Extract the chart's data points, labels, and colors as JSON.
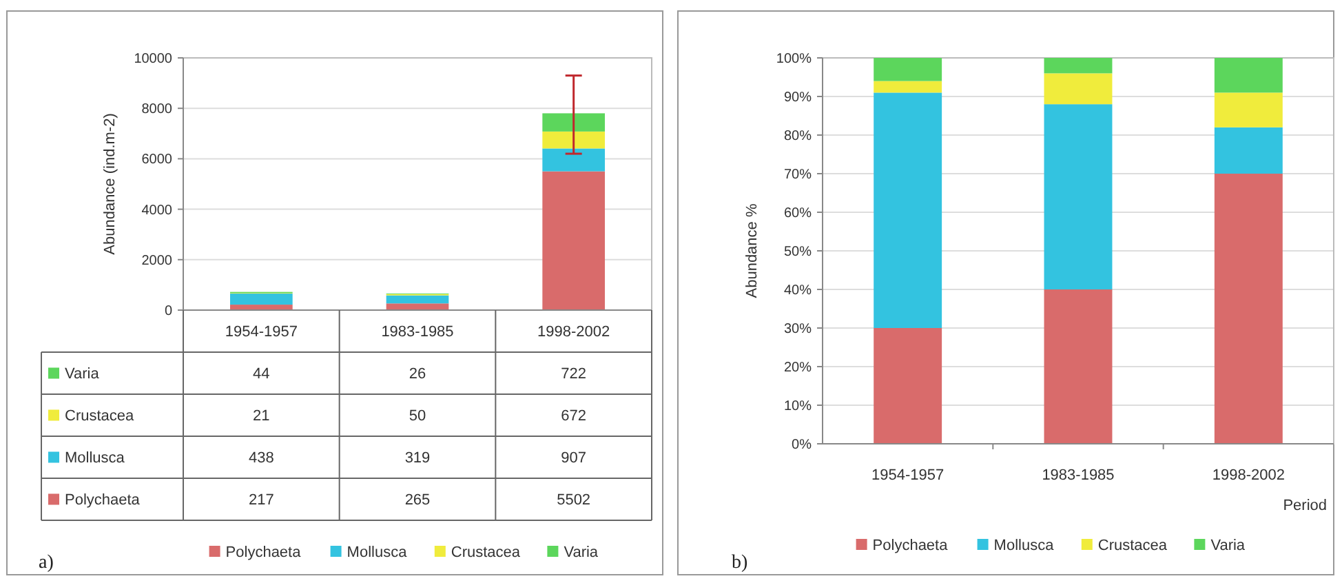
{
  "chart_data": [
    {
      "type": "bar",
      "stacked": true,
      "ylabel": "Abundance (ind.m-2)",
      "categories": [
        "1954-1957",
        "1983-1985",
        "1998-2002"
      ],
      "series": [
        {
          "name": "Polychaeta",
          "color": "#d96b6b",
          "values": [
            217,
            265,
            5502
          ]
        },
        {
          "name": "Mollusca",
          "color": "#33c3e0",
          "values": [
            438,
            319,
            907
          ]
        },
        {
          "name": "Crustacea",
          "color": "#f0ec3c",
          "values": [
            21,
            50,
            672
          ]
        },
        {
          "name": "Varia",
          "color": "#5cd65c",
          "values": [
            44,
            26,
            722
          ],
          "errors": [
            null,
            null,
            [
              6200,
              9300
            ]
          ]
        }
      ],
      "ylim": [
        0,
        10000
      ],
      "yticks": [
        0,
        2000,
        4000,
        6000,
        8000,
        10000
      ],
      "grid": "y",
      "legend": "bottom",
      "data_labels": true,
      "annotations": [
        "a)"
      ]
    },
    {
      "type": "bar",
      "stacked": true,
      "ylabel": "Abundance %",
      "xlabel": "Period",
      "categories": [
        "1954-1957",
        "1983-1985",
        "1998-2002"
      ],
      "series": [
        {
          "name": "Polychaeta",
          "color": "#d96b6b",
          "values": [
            30,
            40,
            70
          ]
        },
        {
          "name": "Mollusca",
          "color": "#33c3e0",
          "values": [
            61,
            48,
            12
          ]
        },
        {
          "name": "Crustacea",
          "color": "#f0ec3c",
          "values": [
            3,
            8,
            9
          ]
        },
        {
          "name": "Varia",
          "color": "#5cd65c",
          "values": [
            6,
            4,
            9
          ]
        }
      ],
      "ylim": [
        0,
        100
      ],
      "yticks": [
        {
          "value": 0,
          "label": "0%"
        },
        {
          "value": 10,
          "label": "10%"
        },
        {
          "value": 20,
          "label": "20%"
        },
        {
          "value": 30,
          "label": "30%"
        },
        {
          "value": 40,
          "label": "40%"
        },
        {
          "value": 50,
          "label": "50%"
        },
        {
          "value": 60,
          "label": "60%"
        },
        {
          "value": 70,
          "label": "70%"
        },
        {
          "value": 80,
          "label": "80%"
        },
        {
          "value": 90,
          "label": "90%"
        },
        {
          "value": 100,
          "label": "100%"
        }
      ],
      "grid": "y",
      "legend": "bottom",
      "annotations": [
        "b)"
      ]
    }
  ]
}
